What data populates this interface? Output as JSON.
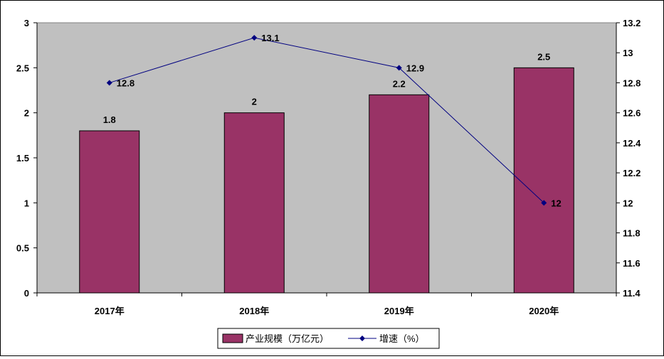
{
  "chart_data": {
    "type": "bar",
    "categories": [
      "2017年",
      "2018年",
      "2019年",
      "2020年"
    ],
    "series": [
      {
        "name": "产业规模（万亿元）",
        "type": "bar",
        "axis": "left",
        "values": [
          1.8,
          2,
          2.2,
          2.5
        ],
        "labels": [
          "1.8",
          "2",
          "2.2",
          "2.5"
        ],
        "color": "#993366"
      },
      {
        "name": "增速（%）",
        "type": "line",
        "axis": "right",
        "values": [
          12.8,
          13.1,
          12.9,
          12
        ],
        "labels": [
          "12.8",
          "13.1",
          "12.9",
          "12"
        ],
        "color": "#000080"
      }
    ],
    "left_axis": {
      "min": 0,
      "max": 3,
      "step": 0.5,
      "ticks": [
        "0",
        "0.5",
        "1",
        "1.5",
        "2",
        "2.5",
        "3"
      ]
    },
    "right_axis": {
      "min": 11.4,
      "max": 13.2,
      "step": 0.2,
      "ticks": [
        "11.4",
        "11.6",
        "11.8",
        "12",
        "12.2",
        "12.4",
        "12.6",
        "12.8",
        "13",
        "13.2"
      ]
    },
    "title": "",
    "xlabel": "",
    "ylabel": "",
    "grid": false,
    "legend_position": "bottom",
    "plot_background": "#C0C0C0"
  }
}
